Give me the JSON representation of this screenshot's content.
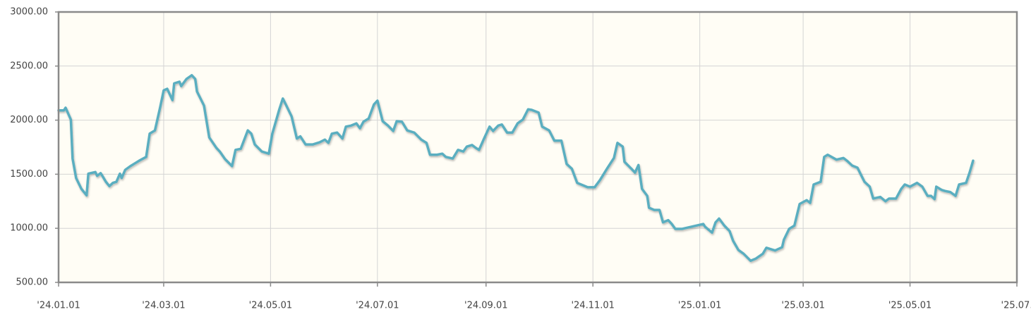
{
  "chart_data": {
    "type": "line",
    "color": "#5aaec0",
    "grid": true,
    "xlim": [
      "2024-01-01",
      "2025-07-01"
    ],
    "xticks": [
      {
        "value": "2024-01-01",
        "label": "'24.01.01"
      },
      {
        "value": "2024-03-01",
        "label": "'24.03.01"
      },
      {
        "value": "2024-05-01",
        "label": "'24.05.01"
      },
      {
        "value": "2024-07-01",
        "label": "'24.07.01"
      },
      {
        "value": "2024-09-01",
        "label": "'24.09.01"
      },
      {
        "value": "2024-11-01",
        "label": "'24.11.01"
      },
      {
        "value": "2025-01-01",
        "label": "'25.01.01"
      },
      {
        "value": "2025-03-01",
        "label": "'25.03.01"
      },
      {
        "value": "2025-05-01",
        "label": "'25.05.01"
      },
      {
        "value": "2025-07-01",
        "label": "'25.07."
      }
    ],
    "ylim": [
      500,
      3000
    ],
    "yticks": [
      {
        "value": 500,
        "label": "500.00"
      },
      {
        "value": 1000,
        "label": "1000.00"
      },
      {
        "value": 1500,
        "label": "1500.00"
      },
      {
        "value": 2000,
        "label": "2000.00"
      },
      {
        "value": 2500,
        "label": "2500.00"
      },
      {
        "value": 3000,
        "label": "3000.00"
      }
    ],
    "x": [
      "2024-01-01",
      "2024-01-04",
      "2024-01-05",
      "2024-01-08",
      "2024-01-09",
      "2024-01-11",
      "2024-01-14",
      "2024-01-17",
      "2024-01-18",
      "2024-01-22",
      "2024-01-23",
      "2024-01-25",
      "2024-01-26",
      "2024-01-28",
      "2024-01-30",
      "2024-02-01",
      "2024-02-03",
      "2024-02-05",
      "2024-02-06",
      "2024-02-08",
      "2024-02-11",
      "2024-02-13",
      "2024-02-16",
      "2024-02-20",
      "2024-02-22",
      "2024-02-25",
      "2024-02-28",
      "2024-03-01",
      "2024-03-03",
      "2024-03-06",
      "2024-03-07",
      "2024-03-10",
      "2024-03-11",
      "2024-03-14",
      "2024-03-17",
      "2024-03-19",
      "2024-03-20",
      "2024-03-24",
      "2024-03-27",
      "2024-03-31",
      "2024-04-02",
      "2024-04-05",
      "2024-04-09",
      "2024-04-11",
      "2024-04-14",
      "2024-04-18",
      "2024-04-20",
      "2024-04-22",
      "2024-04-26",
      "2024-04-30",
      "2024-05-02",
      "2024-05-06",
      "2024-05-08",
      "2024-05-10",
      "2024-05-13",
      "2024-05-16",
      "2024-05-18",
      "2024-05-21",
      "2024-05-25",
      "2024-05-29",
      "2024-06-01",
      "2024-06-03",
      "2024-06-05",
      "2024-06-08",
      "2024-06-11",
      "2024-06-13",
      "2024-06-16",
      "2024-06-19",
      "2024-06-21",
      "2024-06-23",
      "2024-06-26",
      "2024-06-29",
      "2024-07-01",
      "2024-07-04",
      "2024-07-07",
      "2024-07-10",
      "2024-07-12",
      "2024-07-15",
      "2024-07-18",
      "2024-07-22",
      "2024-07-26",
      "2024-07-29",
      "2024-07-31",
      "2024-08-04",
      "2024-08-07",
      "2024-08-09",
      "2024-08-13",
      "2024-08-16",
      "2024-08-19",
      "2024-08-21",
      "2024-08-24",
      "2024-08-26",
      "2024-08-28",
      "2024-08-31",
      "2024-09-03",
      "2024-09-05",
      "2024-09-08",
      "2024-09-10",
      "2024-09-13",
      "2024-09-16",
      "2024-09-19",
      "2024-09-22",
      "2024-09-25",
      "2024-09-27",
      "2024-10-01",
      "2024-10-03",
      "2024-10-07",
      "2024-10-10",
      "2024-10-14",
      "2024-10-17",
      "2024-10-20",
      "2024-10-23",
      "2024-10-26",
      "2024-10-29",
      "2024-11-02",
      "2024-11-05",
      "2024-11-09",
      "2024-11-13",
      "2024-11-15",
      "2024-11-18",
      "2024-11-19",
      "2024-11-23",
      "2024-11-25",
      "2024-11-27",
      "2024-11-29",
      "2024-12-02",
      "2024-12-03",
      "2024-12-06",
      "2024-12-09",
      "2024-12-11",
      "2024-12-14",
      "2024-12-16",
      "2024-12-18",
      "2024-12-22",
      "2025-01-03",
      "2025-01-04",
      "2025-01-08",
      "2025-01-10",
      "2025-01-12",
      "2025-01-15",
      "2025-01-18",
      "2025-01-20",
      "2025-01-23",
      "2025-01-26",
      "2025-01-30",
      "2025-02-02",
      "2025-02-06",
      "2025-02-08",
      "2025-02-11",
      "2025-02-13",
      "2025-02-17",
      "2025-02-18",
      "2025-02-21",
      "2025-02-24",
      "2025-02-27",
      "2025-03-03",
      "2025-03-05",
      "2025-03-07",
      "2025-03-11",
      "2025-03-13",
      "2025-03-15",
      "2025-03-20",
      "2025-03-24",
      "2025-03-26",
      "2025-03-29",
      "2025-04-01",
      "2025-04-05",
      "2025-04-08",
      "2025-04-10",
      "2025-04-14",
      "2025-04-17",
      "2025-04-19",
      "2025-04-23",
      "2025-04-26",
      "2025-04-28",
      "2025-05-01",
      "2025-05-05",
      "2025-05-08",
      "2025-05-11",
      "2025-05-13",
      "2025-05-15",
      "2025-05-16",
      "2025-05-19",
      "2025-05-21",
      "2025-05-24",
      "2025-05-27",
      "2025-05-29",
      "2025-06-02",
      "2025-06-04",
      "2025-06-06"
    ],
    "values": [
      2090,
      2090,
      2115,
      2005,
      1645,
      1465,
      1365,
      1305,
      1505,
      1520,
      1485,
      1510,
      1485,
      1430,
      1390,
      1420,
      1430,
      1505,
      1465,
      1540,
      1575,
      1595,
      1625,
      1660,
      1875,
      1905,
      2120,
      2275,
      2290,
      2185,
      2340,
      2355,
      2315,
      2380,
      2415,
      2380,
      2265,
      2135,
      1840,
      1745,
      1710,
      1640,
      1575,
      1725,
      1735,
      1905,
      1875,
      1775,
      1710,
      1690,
      1875,
      2100,
      2200,
      2135,
      2035,
      1830,
      1850,
      1775,
      1775,
      1795,
      1820,
      1790,
      1875,
      1885,
      1830,
      1940,
      1950,
      1970,
      1925,
      1985,
      2015,
      2145,
      2180,
      1990,
      1950,
      1900,
      1990,
      1985,
      1905,
      1885,
      1820,
      1790,
      1680,
      1680,
      1690,
      1660,
      1645,
      1725,
      1710,
      1755,
      1770,
      1745,
      1725,
      1835,
      1940,
      1900,
      1950,
      1960,
      1885,
      1885,
      1970,
      2005,
      2100,
      2095,
      2070,
      1940,
      1905,
      1810,
      1810,
      1595,
      1550,
      1420,
      1400,
      1380,
      1380,
      1445,
      1550,
      1650,
      1790,
      1755,
      1615,
      1550,
      1515,
      1585,
      1365,
      1300,
      1190,
      1170,
      1170,
      1055,
      1075,
      1040,
      995,
      995,
      1040,
      1015,
      960,
      1055,
      1090,
      1025,
      975,
      885,
      800,
      765,
      700,
      720,
      765,
      820,
      805,
      795,
      825,
      895,
      995,
      1025,
      1225,
      1260,
      1235,
      1405,
      1430,
      1660,
      1680,
      1635,
      1650,
      1625,
      1580,
      1560,
      1430,
      1385,
      1275,
      1290,
      1250,
      1275,
      1275,
      1365,
      1405,
      1385,
      1420,
      1385,
      1300,
      1300,
      1270,
      1385,
      1355,
      1345,
      1335,
      1300,
      1405,
      1420,
      1515,
      1625
    ]
  }
}
